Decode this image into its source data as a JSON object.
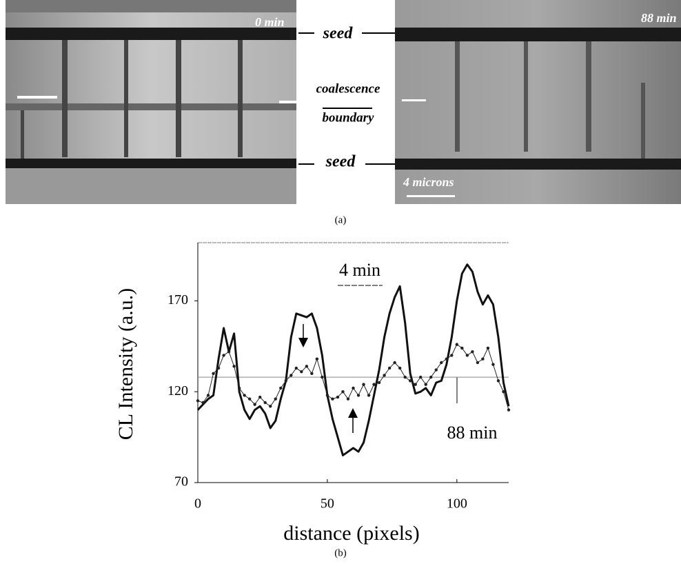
{
  "panel_a": {
    "left_time": "0 min",
    "right_time": "88 min",
    "seed_top": "seed",
    "boundary_top": "coalescence",
    "boundary_bottom": "boundary",
    "seed_bottom": "seed",
    "scale_bar": "4 microns",
    "caption": "(a)"
  },
  "chart_data": {
    "type": "line",
    "caption": "(b)",
    "x_label": "distance (pixels)",
    "y_label": "CL Intensity (a.u.)",
    "x": [
      0,
      2,
      4,
      6,
      8,
      10,
      12,
      14,
      16,
      18,
      20,
      22,
      24,
      26,
      28,
      30,
      32,
      34,
      36,
      38,
      40,
      42,
      44,
      46,
      48,
      50,
      52,
      54,
      56,
      58,
      60,
      62,
      64,
      66,
      68,
      70,
      72,
      74,
      76,
      78,
      80,
      82,
      84,
      86,
      88,
      90,
      92,
      94,
      96,
      98,
      100,
      102,
      104,
      106,
      108,
      110,
      112,
      114,
      116,
      118,
      120
    ],
    "series": [
      {
        "name": "4 min",
        "color": "#111111",
        "markers": false,
        "values": [
          110,
          113,
          116,
          118,
          138,
          155,
          142,
          152,
          120,
          110,
          105,
          110,
          112,
          108,
          100,
          104,
          116,
          126,
          150,
          163,
          162,
          161,
          163,
          155,
          140,
          118,
          105,
          95,
          85,
          87,
          89,
          87,
          92,
          104,
          118,
          132,
          150,
          163,
          172,
          178,
          158,
          130,
          119,
          120,
          122,
          118,
          125,
          126,
          135,
          150,
          170,
          185,
          190,
          186,
          175,
          168,
          173,
          168,
          150,
          125,
          112
        ]
      },
      {
        "name": "88 min",
        "color": "#222222",
        "markers": true,
        "values": [
          115,
          114,
          118,
          130,
          133,
          140,
          142,
          134,
          122,
          118,
          116,
          113,
          117,
          114,
          112,
          116,
          122,
          126,
          129,
          133,
          131,
          134,
          130,
          138,
          128,
          118,
          116,
          117,
          120,
          116,
          122,
          118,
          124,
          118,
          124,
          125,
          129,
          133,
          136,
          133,
          128,
          126,
          124,
          128,
          124,
          128,
          132,
          136,
          138,
          140,
          146,
          144,
          140,
          142,
          136,
          138,
          144,
          135,
          126,
          120,
          110
        ]
      }
    ],
    "hline": 128,
    "xlim": [
      0,
      120
    ],
    "xticks": [
      0,
      50,
      100
    ],
    "ylim": [
      70,
      202
    ],
    "yticks": [
      70,
      120,
      170
    ]
  }
}
